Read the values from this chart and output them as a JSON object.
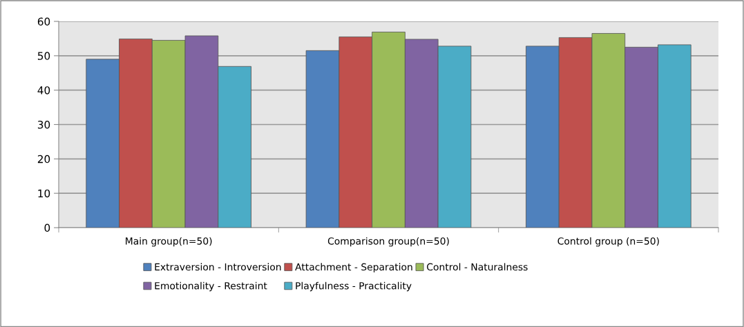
{
  "chart_data": {
    "type": "bar",
    "categories": [
      "Main group(n=50)",
      "Comparison group(n=50)",
      "Control group (n=50)"
    ],
    "series": [
      {
        "name": "Extraversion - Introversion",
        "color": "#4f81bd",
        "values": [
          49.0,
          51.5,
          52.8
        ]
      },
      {
        "name": "Attachment - Separation",
        "color": "#c0504d",
        "values": [
          54.9,
          55.5,
          55.3
        ]
      },
      {
        "name": "Control - Naturalness",
        "color": "#9bbb59",
        "values": [
          54.5,
          56.9,
          56.5
        ]
      },
      {
        "name": "Emotionality - Restraint",
        "color": "#8064a2",
        "values": [
          55.8,
          54.8,
          52.5
        ]
      },
      {
        "name": "Playfulness - Practicality",
        "color": "#4bacc6",
        "values": [
          46.9,
          52.8,
          53.2
        ]
      }
    ],
    "ylim": [
      0,
      60
    ],
    "yticks": [
      0,
      10,
      20,
      30,
      40,
      50,
      60
    ],
    "grid": "y",
    "legend": "bottom"
  }
}
